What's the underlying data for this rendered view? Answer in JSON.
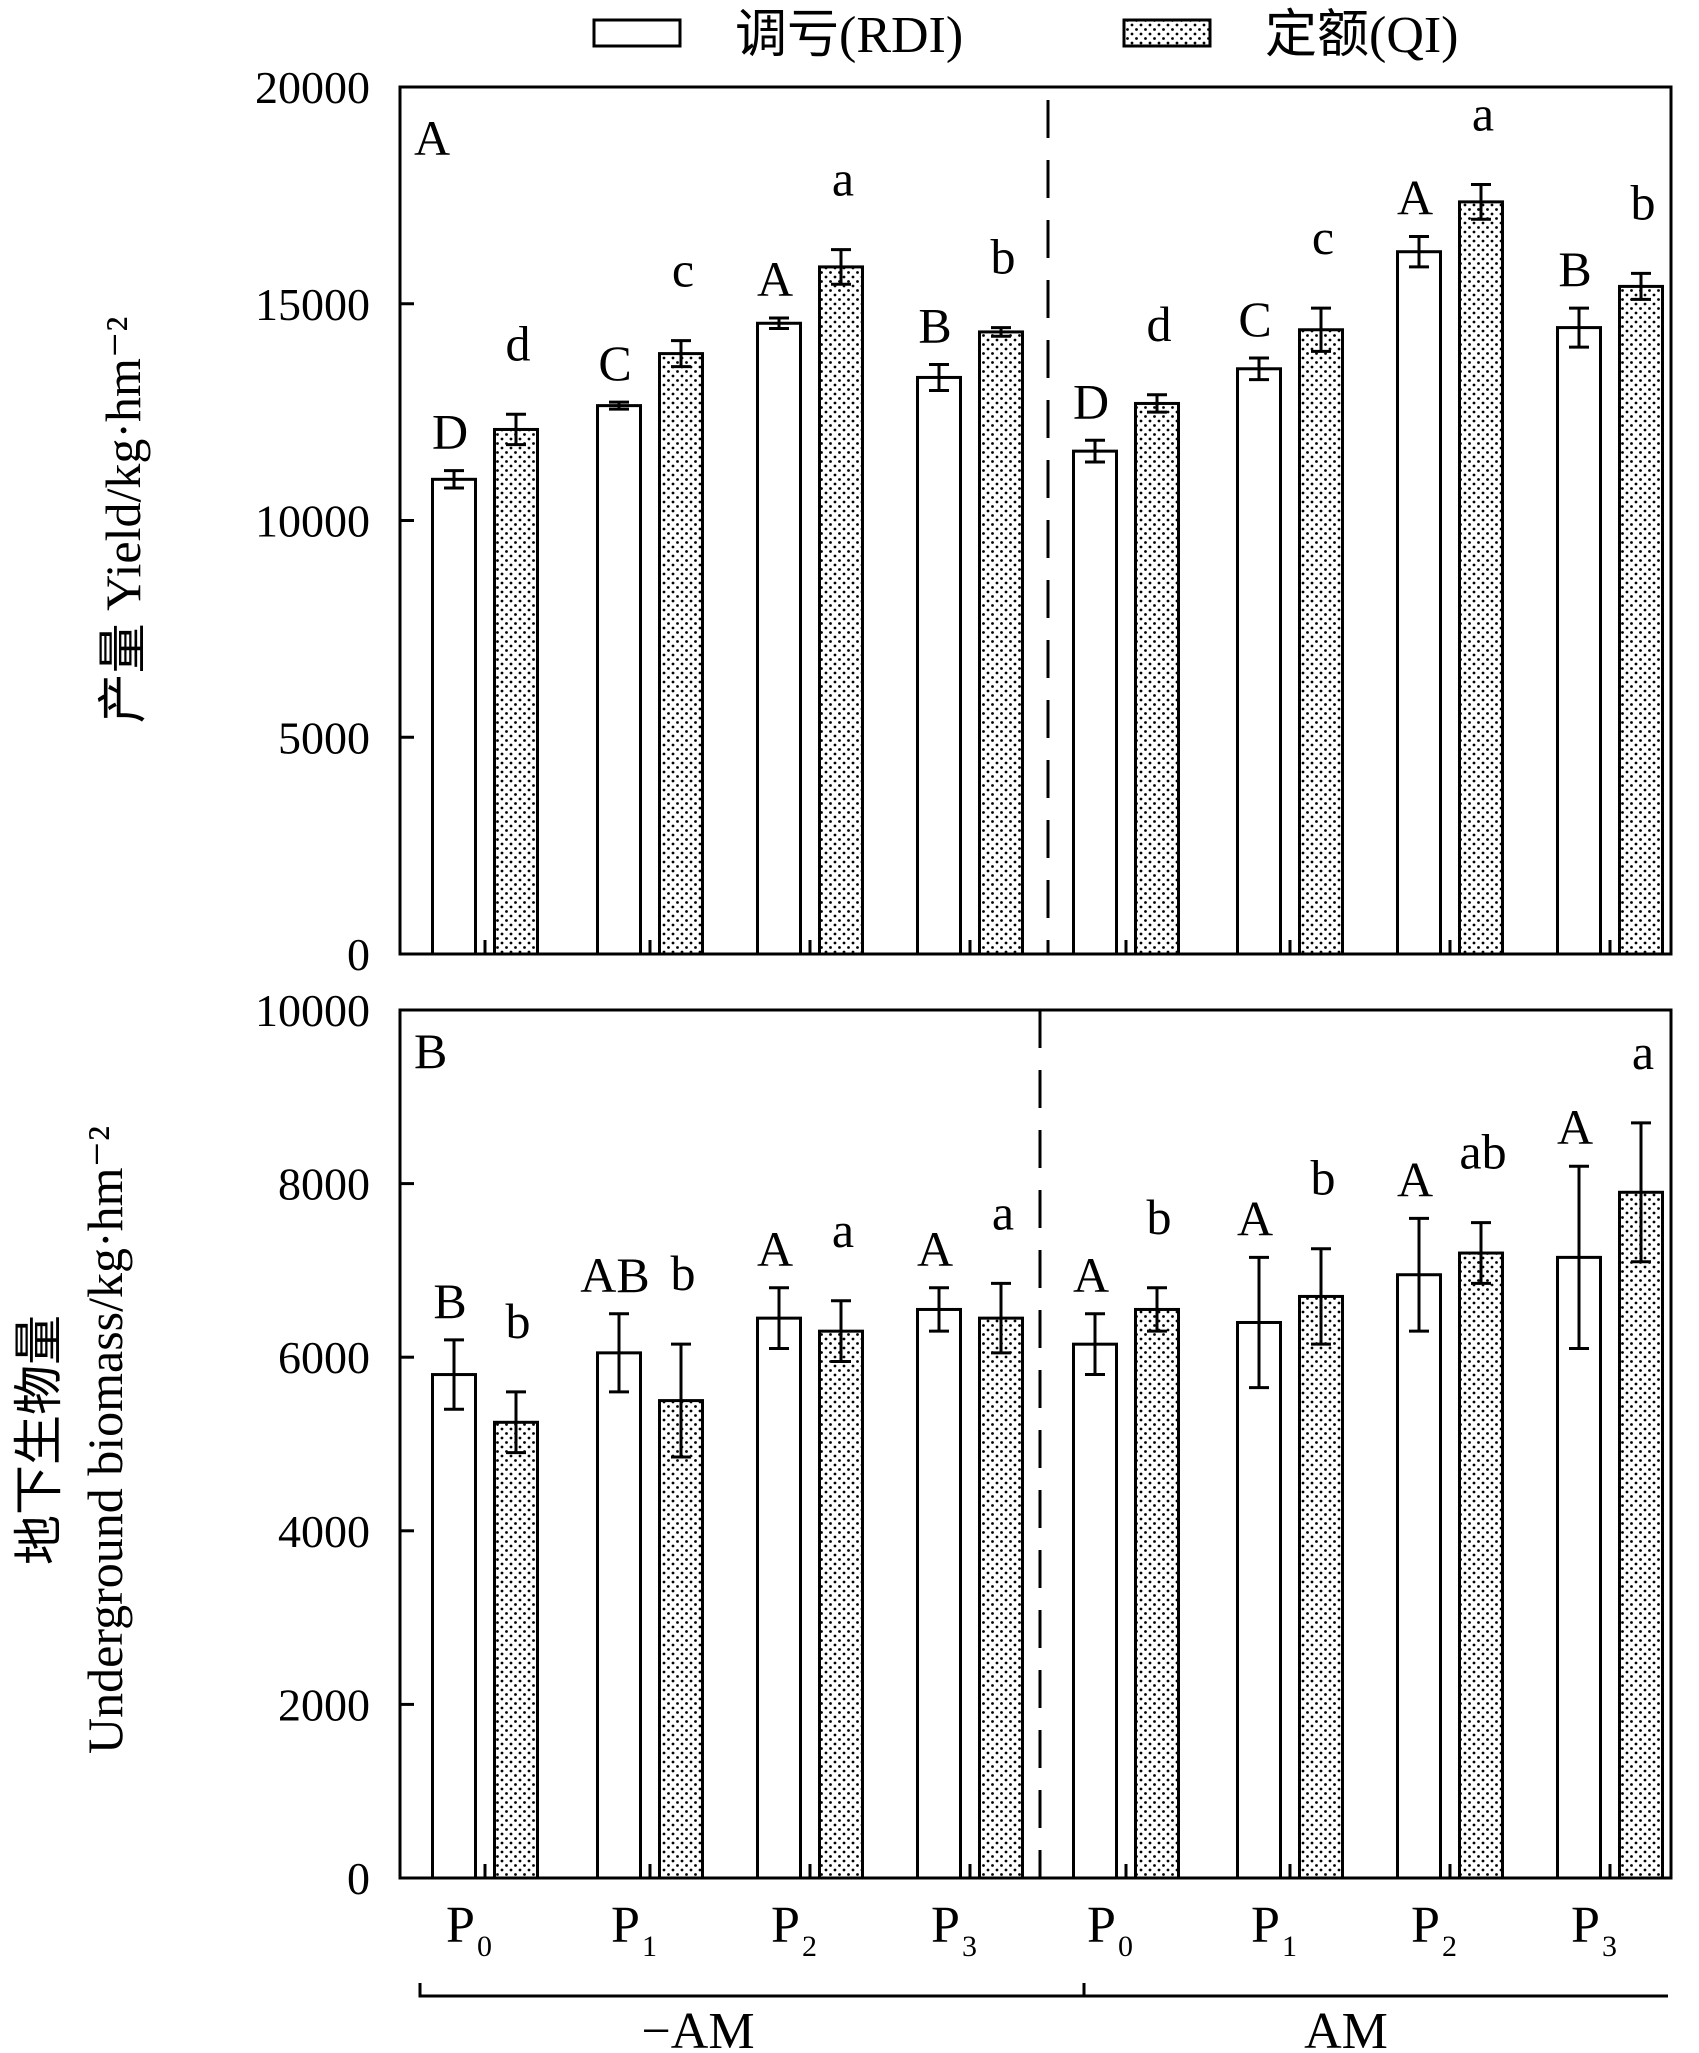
{
  "legend": {
    "rdi_label": "调亏(RDI)",
    "qi_label": "定额(QI)",
    "rdi_fill": "#ffffff",
    "qi_fill": "dotted"
  },
  "chart_data": [
    {
      "type": "bar",
      "panel_label": "A",
      "ylabel": "产量 Yield/kg·hm⁻²",
      "ylim": [
        0,
        20000
      ],
      "yticks": [
        "0",
        "5000",
        "10000",
        "15000",
        "20000"
      ],
      "groups": [
        "−AM",
        "AM"
      ],
      "categories": [
        "P0",
        "P1",
        "P2",
        "P3",
        "P0",
        "P1",
        "P2",
        "P3"
      ],
      "series": [
        {
          "name": "调亏(RDI)",
          "values": [
            10950,
            12650,
            14550,
            13300,
            11600,
            13500,
            16200,
            14450
          ],
          "errors": [
            200,
            80,
            120,
            300,
            250,
            250,
            350,
            450
          ],
          "letters": [
            "D",
            "C",
            "A",
            "B",
            "D",
            "C",
            "A",
            "B"
          ]
        },
        {
          "name": "定额(QI)",
          "values": [
            12100,
            13850,
            15850,
            14350,
            12700,
            14400,
            17350,
            15400
          ],
          "errors": [
            350,
            300,
            400,
            100,
            200,
            500,
            400,
            300
          ],
          "letters": [
            "d",
            "c",
            "a",
            "b",
            "d",
            "c",
            "a",
            "b"
          ]
        }
      ]
    },
    {
      "type": "bar",
      "panel_label": "B",
      "ylabel_line1": "地下生物量",
      "ylabel_line2": "Underground biomass/kg·hm⁻²",
      "ylim": [
        0,
        10000
      ],
      "yticks": [
        "0",
        "2000",
        "4000",
        "6000",
        "8000",
        "10000"
      ],
      "groups": [
        "−AM",
        "AM"
      ],
      "categories": [
        "P0",
        "P1",
        "P2",
        "P3",
        "P0",
        "P1",
        "P2",
        "P3"
      ],
      "series": [
        {
          "name": "调亏(RDI)",
          "values": [
            5800,
            6050,
            6450,
            6550,
            6150,
            6400,
            6950,
            7150
          ],
          "errors": [
            400,
            450,
            350,
            250,
            350,
            750,
            650,
            1050
          ],
          "letters": [
            "B",
            "AB",
            "A",
            "A",
            "A",
            "A",
            "A",
            "A"
          ]
        },
        {
          "name": "定额(QI)",
          "values": [
            5250,
            5500,
            6300,
            6450,
            6550,
            6700,
            7200,
            7900
          ],
          "errors": [
            350,
            650,
            350,
            400,
            250,
            550,
            350,
            800
          ],
          "letters": [
            "b",
            "b",
            "a",
            "a",
            "b",
            "b",
            "ab",
            "a"
          ]
        }
      ]
    }
  ],
  "x_axis": {
    "ticks": [
      {
        "main": "P",
        "sub": "0"
      },
      {
        "main": "P",
        "sub": "1"
      },
      {
        "main": "P",
        "sub": "2"
      },
      {
        "main": "P",
        "sub": "3"
      },
      {
        "main": "P",
        "sub": "0"
      },
      {
        "main": "P",
        "sub": "1"
      },
      {
        "main": "P",
        "sub": "2"
      },
      {
        "main": "P",
        "sub": "3"
      }
    ],
    "group_labels": [
      "−AM",
      "AM"
    ]
  }
}
